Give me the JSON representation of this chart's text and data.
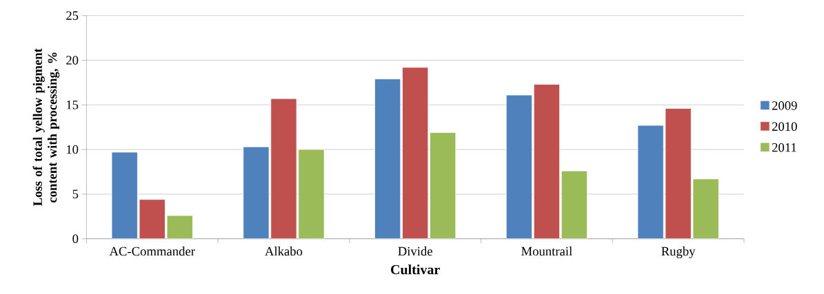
{
  "chart_data": {
    "type": "bar",
    "xlabel": "Cultivar",
    "ylabel": "Loss of total yellow pigment content with processing, %",
    "categories": [
      "AC-Commander",
      "Alkabo",
      "Divide",
      "Mountrail",
      "Rugby"
    ],
    "series": [
      {
        "name": "2009",
        "color": "#4f81bd",
        "values": [
          9.7,
          10.3,
          17.9,
          16.1,
          12.7
        ]
      },
      {
        "name": "2010",
        "color": "#c0504d",
        "values": [
          4.4,
          15.7,
          19.2,
          17.3,
          14.6
        ]
      },
      {
        "name": "2011",
        "color": "#9bbb59",
        "values": [
          2.6,
          10.0,
          11.9,
          7.6,
          6.7
        ]
      }
    ],
    "ylim": [
      0,
      25
    ],
    "yticks": [
      0,
      5,
      10,
      15,
      20,
      25
    ],
    "grid": "y",
    "legend": "right"
  }
}
